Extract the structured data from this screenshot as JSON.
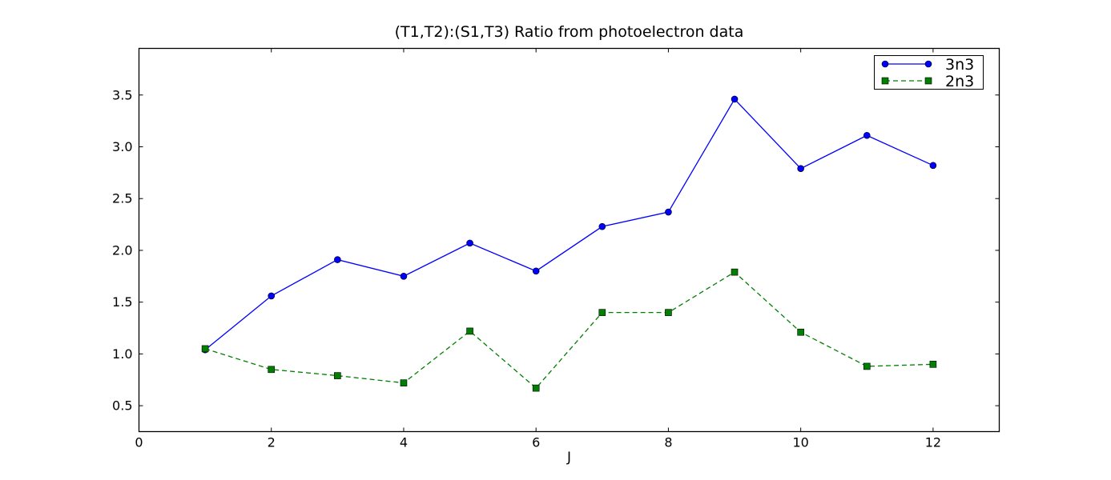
{
  "chart_data": {
    "type": "line",
    "title": "(T1,T2):(S1,T3) Ratio from photoelectron data",
    "xlabel": "J",
    "ylabel": "",
    "xlim": [
      0,
      13
    ],
    "ylim": [
      0.25,
      3.95
    ],
    "x_ticks": [
      0,
      2,
      4,
      6,
      8,
      10,
      12
    ],
    "y_ticks": [
      0.5,
      1.0,
      1.5,
      2.0,
      2.5,
      3.0,
      3.5
    ],
    "y_tick_labels": [
      "0.5",
      "1.0",
      "1.5",
      "2.0",
      "2.5",
      "3.0",
      "3.5"
    ],
    "grid": false,
    "legend": "top-right",
    "x": [
      1,
      2,
      3,
      4,
      5,
      6,
      7,
      8,
      9,
      10,
      11,
      12
    ],
    "series": [
      {
        "name": "3n3",
        "color": "#0000ff",
        "marker": "circle",
        "linestyle": "solid",
        "values": [
          1.04,
          1.56,
          1.91,
          1.75,
          2.07,
          1.8,
          2.23,
          2.37,
          3.46,
          2.79,
          3.11,
          2.82
        ]
      },
      {
        "name": "2n3",
        "color": "#007f00",
        "marker": "square",
        "linestyle": "dashed",
        "values": [
          1.05,
          0.85,
          0.79,
          0.72,
          1.22,
          0.67,
          1.4,
          1.4,
          1.79,
          1.21,
          0.88,
          0.9
        ]
      }
    ]
  }
}
